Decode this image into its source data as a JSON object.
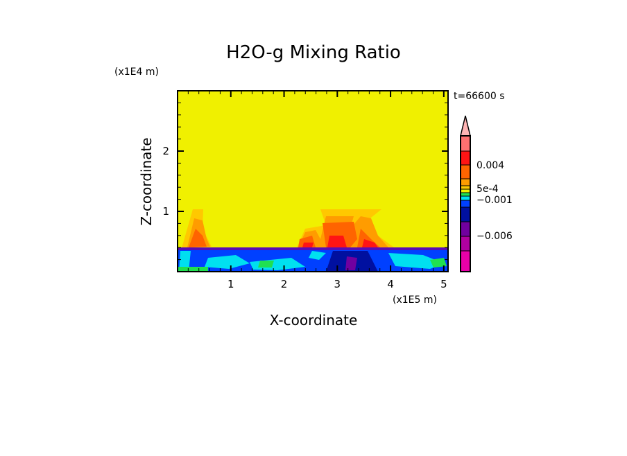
{
  "chart_data": {
    "type": "heatmap",
    "title": "H2O-g Mixing Ratio",
    "xlabel": "X-coordinate",
    "ylabel": "Z-coordinate",
    "x_unit": "(x1E5 m)",
    "y_unit": "(x1E4 m)",
    "time_label": "t=66600 s",
    "xlim": [
      0,
      5.08
    ],
    "ylim": [
      0,
      3
    ],
    "xticks": [
      "1",
      "2",
      "3",
      "4",
      "5"
    ],
    "yticks": [
      "1",
      "2"
    ],
    "colorbar": {
      "labels": [
        {
          "text": "0.004",
          "level": 0.004
        },
        {
          "text": "5e-4",
          "level": 0.0005
        },
        {
          "text": "−0.001",
          "level": -0.001
        },
        {
          "text": "−0.006",
          "level": -0.006
        }
      ],
      "colors": [
        "#ffb4b4",
        "#ff7070",
        "#ff1414",
        "#ff6400",
        "#ff9c00",
        "#ffc800",
        "#f0f000",
        "#20e050",
        "#00e0f0",
        "#0040ff",
        "#0010a0",
        "#7000a0",
        "#b000a0",
        "#e800a8"
      ]
    }
  }
}
